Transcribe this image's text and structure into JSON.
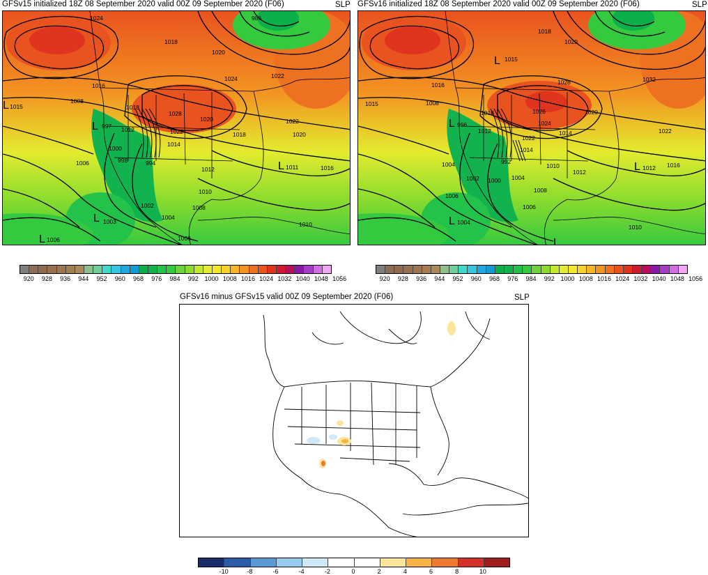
{
  "panels": {
    "v15": {
      "title": "GFSv15 initialized 18Z 08 September 2020 valid 00Z 09 September 2020 (F06)",
      "field": "SLP"
    },
    "v16": {
      "title": "GFSv16 initialized 18Z 08 September 2020 valid 00Z 09 September 2020 (F06)",
      "field": "SLP"
    },
    "diff": {
      "title": "GFSv16 minus GFSv15 valid 00Z 09 September 2020 (F06)",
      "field": "SLP"
    }
  },
  "slp_colorbar": {
    "labels": [
      "920",
      "928",
      "936",
      "944",
      "952",
      "960",
      "968",
      "976",
      "984",
      "992",
      "1000",
      "1008",
      "1016",
      "1024",
      "1032",
      "1040",
      "1048",
      "1056"
    ],
    "colors": [
      "#7f7f7f",
      "#8c6d56",
      "#8f6a4e",
      "#96714f",
      "#9c7650",
      "#a57d52",
      "#ab8a5a",
      "#8fbf8a",
      "#6ecf9a",
      "#3fd9c9",
      "#33c6e0",
      "#1fa8e0",
      "#139ad6",
      "#0bb04a",
      "#12b34f",
      "#23c24a",
      "#35c93f",
      "#6fd23a",
      "#8cdc2e",
      "#c6e82a",
      "#e3ec2e",
      "#f3e82c",
      "#f7d229",
      "#f6b524",
      "#f39422",
      "#ee7122",
      "#e9531f",
      "#e0341f",
      "#d01a32",
      "#b70f5a",
      "#8a1aa6",
      "#a53ec4",
      "#cf6fe0",
      "#f0a6f2"
    ]
  },
  "diff_colorbar": {
    "labels": [
      "-10",
      "-8",
      "-6",
      "-4",
      "-2",
      "0",
      "2",
      "4",
      "6",
      "8",
      "10"
    ],
    "colors": [
      "#1a2b6b",
      "#2a5ca8",
      "#5a9bd6",
      "#98cdef",
      "#cfe9f7",
      "#ffffff",
      "#ffffff",
      "#fde69a",
      "#f8b347",
      "#ec7a30",
      "#d6302a",
      "#9e1e1e"
    ]
  },
  "v15_labels": [
    {
      "t": "1015"
    },
    {
      "t": "1008"
    },
    {
      "t": "1016"
    },
    {
      "t": "1018"
    },
    {
      "t": "997"
    },
    {
      "t": "1012"
    },
    {
      "t": "1000"
    },
    {
      "t": "998"
    },
    {
      "t": "994"
    },
    {
      "t": "1006"
    },
    {
      "t": "1002"
    },
    {
      "t": "1004"
    },
    {
      "t": "1003"
    },
    {
      "t": "1006"
    },
    {
      "t": "1028"
    },
    {
      "t": "1022"
    },
    {
      "t": "1020"
    },
    {
      "t": "1014"
    },
    {
      "t": "1018"
    },
    {
      "t": "1012"
    },
    {
      "t": "1010"
    },
    {
      "t": "1008"
    },
    {
      "t": "1011"
    },
    {
      "t": "1016"
    },
    {
      "t": "1022"
    },
    {
      "t": "1020"
    },
    {
      "t": "1024"
    },
    {
      "t": "1018"
    },
    {
      "t": "1022"
    },
    {
      "t": "986"
    },
    {
      "t": "1020"
    },
    {
      "t": "1024"
    },
    {
      "t": "1010"
    },
    {
      "t": "1006"
    }
  ],
  "v16_labels": [
    {
      "t": "1015"
    },
    {
      "t": "1008"
    },
    {
      "t": "1016"
    },
    {
      "t": "1018"
    },
    {
      "t": "996"
    },
    {
      "t": "1012"
    },
    {
      "t": "1004"
    },
    {
      "t": "1002"
    },
    {
      "t": "1000"
    },
    {
      "t": "992"
    },
    {
      "t": "1004"
    },
    {
      "t": "1006"
    },
    {
      "t": "1006"
    },
    {
      "t": "1004"
    },
    {
      "t": "1028"
    },
    {
      "t": "1026"
    },
    {
      "t": "1024"
    },
    {
      "t": "1022"
    },
    {
      "t": "1014"
    },
    {
      "t": "1014"
    },
    {
      "t": "1010"
    },
    {
      "t": "1012"
    },
    {
      "t": "1008"
    },
    {
      "t": "1012"
    },
    {
      "t": "1016"
    },
    {
      "t": "1022"
    },
    {
      "t": "1032"
    },
    {
      "t": "1020"
    },
    {
      "t": "1015"
    },
    {
      "t": "1018"
    },
    {
      "t": "1020"
    },
    {
      "t": "1010"
    }
  ],
  "low_markers": {
    "v15": [
      "L",
      "L",
      "L",
      "L",
      "L"
    ],
    "v16": [
      "L",
      "L",
      "L",
      "L",
      "L"
    ]
  }
}
